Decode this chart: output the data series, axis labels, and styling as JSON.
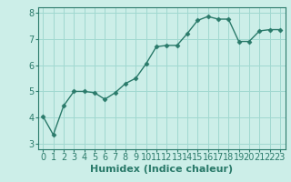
{
  "x": [
    0,
    1,
    2,
    3,
    4,
    5,
    6,
    7,
    8,
    9,
    10,
    11,
    12,
    13,
    14,
    15,
    16,
    17,
    18,
    19,
    20,
    21,
    22,
    23
  ],
  "y": [
    4.05,
    3.35,
    4.45,
    5.0,
    5.0,
    4.95,
    4.7,
    4.95,
    5.3,
    5.5,
    6.05,
    6.7,
    6.75,
    6.75,
    7.2,
    7.7,
    7.85,
    7.75,
    7.75,
    6.9,
    6.9,
    7.3,
    7.35,
    7.35
  ],
  "line_color": "#2a7a6a",
  "marker": "D",
  "marker_size": 2.5,
  "bg_color": "#cceee8",
  "grid_color": "#a0d8d0",
  "xlabel": "Humidex (Indice chaleur)",
  "ylim": [
    2.8,
    8.2
  ],
  "xlim": [
    -0.5,
    23.5
  ],
  "yticks": [
    3,
    4,
    5,
    6,
    7,
    8
  ],
  "xticks": [
    0,
    1,
    2,
    3,
    4,
    5,
    6,
    7,
    8,
    9,
    10,
    11,
    12,
    13,
    14,
    15,
    16,
    17,
    18,
    19,
    20,
    21,
    22,
    23
  ],
  "xlabel_fontsize": 8,
  "tick_fontsize": 7,
  "spine_color": "#2a7a6a",
  "linewidth": 1.0
}
